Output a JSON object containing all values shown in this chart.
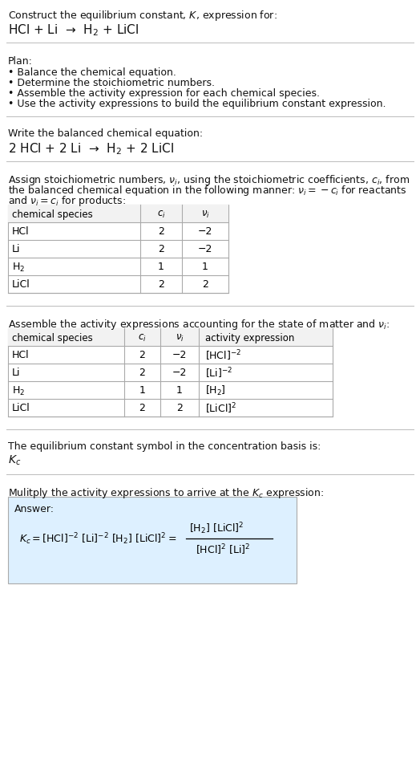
{
  "title_line1": "Construct the equilibrium constant, $K$, expression for:",
  "title_line2": "HCl + Li  →  H$_2$ + LiCl",
  "plan_header": "Plan:",
  "plan_items": [
    "• Balance the chemical equation.",
    "• Determine the stoichiometric numbers.",
    "• Assemble the activity expression for each chemical species.",
    "• Use the activity expressions to build the equilibrium constant expression."
  ],
  "balanced_header": "Write the balanced chemical equation:",
  "balanced_eq": "2 HCl + 2 Li  →  H$_2$ + 2 LiCl",
  "stoich_intro_1": "Assign stoichiometric numbers, $\\nu_i$, using the stoichiometric coefficients, $c_i$, from",
  "stoich_intro_2": "the balanced chemical equation in the following manner: $\\nu_i = -c_i$ for reactants",
  "stoich_intro_3": "and $\\nu_i = c_i$ for products:",
  "table1_headers": [
    "chemical species",
    "$c_i$",
    "$\\nu_i$"
  ],
  "table1_rows": [
    [
      "HCl",
      "2",
      "−2"
    ],
    [
      "Li",
      "2",
      "−2"
    ],
    [
      "H$_2$",
      "1",
      "1"
    ],
    [
      "LiCl",
      "2",
      "2"
    ]
  ],
  "activity_intro": "Assemble the activity expressions accounting for the state of matter and $\\nu_i$:",
  "table2_headers": [
    "chemical species",
    "$c_i$",
    "$\\nu_i$",
    "activity expression"
  ],
  "table2_rows": [
    [
      "HCl",
      "2",
      "−2",
      "[HCl]$^{-2}$"
    ],
    [
      "Li",
      "2",
      "−2",
      "[Li]$^{-2}$"
    ],
    [
      "H$_2$",
      "1",
      "1",
      "[H$_2$]"
    ],
    [
      "LiCl",
      "2",
      "2",
      "[LiCl]$^2$"
    ]
  ],
  "kc_text": "The equilibrium constant symbol in the concentration basis is:",
  "kc_symbol": "$K_c$",
  "multiply_text": "Mulitply the activity expressions to arrive at the $K_c$ expression:",
  "answer_label": "Answer:",
  "answer_box_color": "#ddf0ff",
  "bg_color": "#ffffff",
  "divider_color": "#bbbbbb",
  "font_size": 9.0,
  "small_font_size": 8.5
}
